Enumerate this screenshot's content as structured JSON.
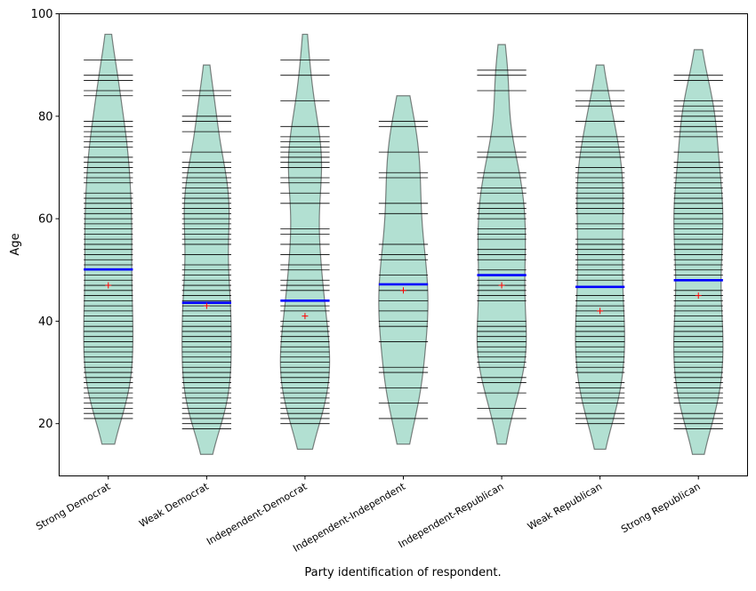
{
  "chart_data": {
    "type": "beanplot",
    "title": "",
    "xlabel": "Party identification of respondent.",
    "ylabel": "Age",
    "ylim": [
      9.8,
      100
    ],
    "xlim": [
      0.5,
      7.5
    ],
    "yticks": [
      20,
      40,
      60,
      80,
      100
    ],
    "grid": false,
    "colors": {
      "violin_fill": "#66c2a5",
      "violin_edge": "#333333",
      "bean": "#000000",
      "mean": "#0000ff",
      "median": "#ff0000"
    },
    "categories": [
      "Strong Democrat",
      "Weak Democrat",
      "Independent-Democrat",
      "Independent-Independent",
      "Independent-Republican",
      "Weak Republican",
      "Strong Republican"
    ],
    "series": [
      {
        "mean": 50.1,
        "median": 47,
        "range": [
          16,
          96
        ],
        "ages": [
          91,
          88,
          87,
          85,
          84,
          79,
          78,
          77,
          76,
          75,
          74,
          72,
          71,
          70,
          69,
          68,
          67,
          65,
          64,
          63,
          62,
          61,
          60,
          59,
          58,
          57,
          56,
          55,
          54,
          53,
          52,
          51,
          49,
          48,
          47,
          46,
          45,
          44,
          43,
          42,
          41,
          40,
          39,
          38,
          37,
          36,
          35,
          34,
          33,
          32,
          31,
          30,
          29,
          28,
          27,
          26,
          25,
          24,
          23,
          22,
          21
        ]
      },
      {
        "mean": 43.6,
        "median": 43,
        "range": [
          14,
          90
        ],
        "ages": [
          85,
          84,
          80,
          79,
          77,
          73,
          71,
          70,
          69,
          68,
          67,
          66,
          65,
          64,
          63,
          62,
          61,
          60,
          59,
          58,
          57,
          56,
          55,
          53,
          51,
          50,
          49,
          48,
          47,
          46,
          45,
          44,
          43,
          42,
          41,
          40,
          39,
          38,
          37,
          36,
          35,
          34,
          33,
          32,
          31,
          30,
          29,
          28,
          27,
          26,
          25,
          24,
          23,
          22,
          21,
          20,
          19
        ]
      },
      {
        "mean": 44,
        "median": 41,
        "range": [
          15,
          96
        ],
        "ages": [
          91,
          88,
          83,
          78,
          76,
          75,
          74,
          73,
          72,
          71,
          70,
          68,
          67,
          65,
          63,
          58,
          57,
          55,
          53,
          51,
          50,
          48,
          47,
          46,
          43,
          42,
          40,
          39,
          38,
          37,
          36,
          35,
          34,
          33,
          32,
          31,
          30,
          29,
          28,
          27,
          26,
          25,
          24,
          23,
          22,
          21,
          20
        ]
      },
      {
        "mean": 47.2,
        "median": 46,
        "range": [
          16,
          84
        ],
        "ages": [
          79,
          78,
          73,
          69,
          68,
          63,
          61,
          55,
          53,
          52,
          49,
          46,
          44,
          42,
          40,
          39,
          36,
          31,
          30,
          27,
          24,
          21
        ]
      },
      {
        "mean": 49,
        "median": 47,
        "range": [
          16,
          94
        ],
        "ages": [
          89,
          88,
          85,
          76,
          73,
          72,
          69,
          68,
          66,
          65,
          63,
          62,
          61,
          60,
          58,
          57,
          56,
          54,
          53,
          52,
          50,
          48,
          47,
          46,
          45,
          44,
          40,
          39,
          38,
          37,
          36,
          35,
          34,
          33,
          32,
          31,
          29,
          28,
          26,
          23,
          21
        ]
      },
      {
        "mean": 46.7,
        "median": 42,
        "range": [
          15,
          90
        ],
        "ages": [
          85,
          83,
          82,
          79,
          76,
          75,
          74,
          73,
          72,
          70,
          69,
          68,
          67,
          66,
          65,
          64,
          63,
          62,
          61,
          59,
          58,
          56,
          55,
          54,
          53,
          52,
          51,
          50,
          49,
          48,
          45,
          44,
          43,
          42,
          41,
          40,
          39,
          38,
          37,
          36,
          35,
          34,
          33,
          32,
          31,
          30,
          28,
          27,
          26,
          25,
          24,
          22,
          21,
          20
        ]
      },
      {
        "mean": 48,
        "median": 45,
        "range": [
          14,
          93
        ],
        "ages": [
          88,
          87,
          83,
          82,
          81,
          80,
          79,
          78,
          77,
          76,
          73,
          71,
          70,
          69,
          68,
          67,
          66,
          65,
          64,
          63,
          62,
          61,
          60,
          59,
          58,
          57,
          56,
          55,
          54,
          53,
          52,
          51,
          50,
          49,
          46,
          45,
          44,
          43,
          42,
          41,
          40,
          39,
          38,
          37,
          36,
          35,
          34,
          33,
          32,
          31,
          30,
          29,
          28,
          27,
          26,
          25,
          24,
          22,
          21,
          20,
          19
        ]
      }
    ]
  }
}
